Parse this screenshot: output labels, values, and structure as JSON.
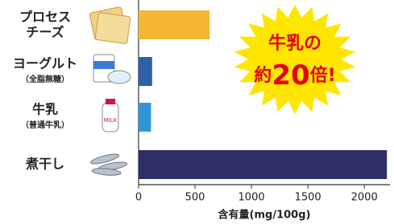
{
  "chart_data": {
    "type": "hbar",
    "categories": [
      [
        "プロセス",
        "チーズ"
      ],
      [
        "ヨーグルト",
        "（全脂無糖）"
      ],
      [
        "牛乳",
        "（普通牛乳）"
      ],
      [
        "煮干し"
      ]
    ],
    "values": [
      630,
      120,
      110,
      2200
    ],
    "colors": [
      "#f5b731",
      "#2f5fa8",
      "#2f95d6",
      "#2d2f66"
    ],
    "xlim": [
      0,
      2220
    ],
    "xticks": [
      0,
      500,
      1000,
      1500,
      2000
    ],
    "xlabel": "含有量(mg/100g)",
    "annotation": [
      "牛乳の",
      "約",
      "20",
      "倍!"
    ]
  }
}
